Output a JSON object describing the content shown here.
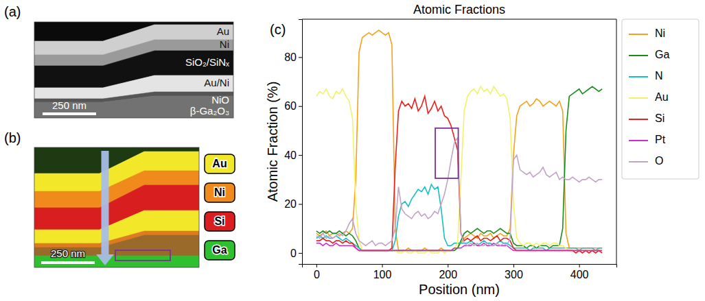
{
  "chart_data": {
    "type": "line",
    "title": "Atomic Fractions",
    "x_label": "Position (nm)",
    "y_label": "Atomic Fraction (%)",
    "xlim": [
      -21.8,
      456.8
    ],
    "ylim": [
      -4.5,
      95.5
    ],
    "xticks": [
      0,
      100,
      200,
      300,
      400
    ],
    "yticks": [
      0,
      20,
      40,
      60,
      80
    ],
    "grid": false,
    "legend": "right",
    "marker": "none",
    "line_style": "solid",
    "highlight": {
      "x": [
        181,
        216
      ],
      "y": [
        30.5,
        51
      ]
    },
    "x": [
      0,
      5,
      10,
      15,
      20,
      25,
      30,
      35,
      40,
      45,
      50,
      55,
      60,
      65,
      70,
      75,
      80,
      85,
      90,
      95,
      100,
      105,
      110,
      115,
      120,
      125,
      130,
      135,
      140,
      145,
      150,
      155,
      160,
      165,
      170,
      175,
      180,
      185,
      190,
      195,
      200,
      205,
      210,
      215,
      220,
      225,
      230,
      235,
      240,
      245,
      250,
      255,
      260,
      265,
      270,
      275,
      280,
      285,
      290,
      295,
      300,
      305,
      310,
      315,
      320,
      325,
      330,
      335,
      340,
      345,
      350,
      355,
      360,
      365,
      370,
      375,
      380,
      385,
      390,
      395,
      400,
      405,
      410,
      415,
      420,
      425,
      430,
      435
    ],
    "series": [
      {
        "name": "Ni",
        "color": "#f5a21b",
        "values": [
          8,
          7,
          8,
          9,
          7,
          8,
          8,
          7,
          8,
          9,
          8,
          10,
          30,
          82,
          88,
          89,
          90,
          89,
          90,
          91,
          90,
          89,
          90,
          85,
          10,
          1,
          1,
          1,
          2,
          1,
          1,
          1,
          1,
          2,
          1,
          1,
          1,
          1,
          2,
          1,
          1,
          1,
          2,
          2,
          4,
          6,
          7,
          8,
          7,
          6,
          8,
          7,
          7,
          8,
          6,
          7,
          8,
          7,
          7,
          10,
          40,
          56,
          60,
          61,
          62,
          60,
          61,
          63,
          62,
          60,
          61,
          62,
          61,
          60,
          62,
          58,
          8,
          2,
          2,
          2,
          2,
          2,
          2,
          2,
          2,
          2,
          2,
          2
        ]
      },
      {
        "name": "Ga",
        "color": "#1a8c1a",
        "values": [
          9,
          8,
          9,
          8,
          9,
          8,
          8,
          9,
          8,
          7,
          8,
          7,
          5,
          2,
          1,
          1,
          1,
          1,
          1,
          1,
          1,
          1,
          1,
          1,
          1,
          1,
          1,
          1,
          1,
          1,
          1,
          1,
          1,
          1,
          1,
          1,
          1,
          1,
          1,
          1,
          1,
          1,
          1,
          2,
          5,
          8,
          9,
          8,
          9,
          10,
          9,
          8,
          9,
          9,
          8,
          9,
          10,
          9,
          8,
          8,
          4,
          3,
          3,
          3,
          2,
          3,
          3,
          2,
          3,
          3,
          3,
          2,
          3,
          3,
          3,
          10,
          50,
          64,
          65,
          66,
          67,
          65,
          66,
          67,
          68,
          67,
          66,
          67
        ]
      },
      {
        "name": "N",
        "color": "#17bfc4",
        "values": [
          6,
          7,
          6,
          7,
          6,
          6,
          7,
          6,
          5,
          6,
          5,
          4,
          3,
          2,
          1,
          1,
          1,
          1,
          1,
          1,
          1,
          1,
          1,
          1,
          5,
          15,
          20,
          21,
          19,
          22,
          24,
          26,
          25,
          27,
          24,
          28,
          26,
          27,
          18,
          6,
          3,
          3,
          4,
          4,
          4,
          4,
          4,
          5,
          4,
          3,
          4,
          5,
          4,
          4,
          3,
          4,
          5,
          4,
          4,
          3,
          2,
          2,
          2,
          2,
          2,
          1,
          2,
          2,
          2,
          2,
          1,
          2,
          2,
          2,
          2,
          2,
          2,
          2,
          2,
          2,
          1,
          2,
          2,
          2,
          2,
          1,
          2,
          2
        ]
      },
      {
        "name": "Au",
        "color": "#f2f26a",
        "values": [
          64,
          66,
          65,
          67,
          64,
          63,
          66,
          65,
          67,
          64,
          62,
          55,
          20,
          5,
          1,
          1,
          1,
          1,
          1,
          1,
          1,
          1,
          1,
          1,
          1,
          0,
          0,
          1,
          0,
          0,
          1,
          0,
          0,
          0,
          1,
          0,
          0,
          0,
          1,
          0,
          1,
          1,
          2,
          4,
          30,
          58,
          64,
          66,
          67,
          65,
          68,
          66,
          67,
          65,
          68,
          66,
          64,
          65,
          63,
          55,
          20,
          6,
          4,
          3,
          4,
          4,
          3,
          4,
          3,
          4,
          4,
          3,
          4,
          4,
          3,
          3,
          2,
          1,
          1,
          1,
          1,
          1,
          1,
          1,
          1,
          1,
          1,
          1
        ]
      },
      {
        "name": "Si",
        "color": "#e8201e",
        "values": [
          5,
          5,
          6,
          5,
          5,
          4,
          5,
          5,
          4,
          5,
          4,
          4,
          2,
          1,
          1,
          1,
          1,
          1,
          1,
          1,
          1,
          1,
          1,
          2,
          35,
          58,
          62,
          60,
          61,
          59,
          63,
          58,
          60,
          64,
          57,
          59,
          62,
          58,
          60,
          56,
          55,
          52,
          47,
          42,
          8,
          5,
          6,
          5,
          6,
          7,
          5,
          6,
          6,
          5,
          6,
          7,
          5,
          6,
          6,
          5,
          2,
          1,
          1,
          1,
          1,
          1,
          1,
          1,
          1,
          1,
          1,
          1,
          1,
          1,
          1,
          1,
          1,
          1,
          1,
          0,
          1,
          0,
          1,
          0,
          1,
          0,
          1,
          0
        ]
      },
      {
        "name": "Pt",
        "color": "#d42ad4",
        "values": [
          4,
          4,
          3,
          4,
          3,
          3,
          4,
          3,
          3,
          3,
          3,
          3,
          2,
          1,
          1,
          1,
          1,
          1,
          1,
          1,
          1,
          1,
          1,
          1,
          1,
          1,
          1,
          1,
          1,
          1,
          1,
          1,
          1,
          1,
          1,
          1,
          1,
          1,
          1,
          1,
          1,
          1,
          2,
          2,
          2,
          3,
          3,
          3,
          4,
          3,
          3,
          4,
          3,
          3,
          4,
          3,
          3,
          3,
          3,
          2,
          1,
          1,
          1,
          1,
          1,
          1,
          1,
          1,
          1,
          1,
          1,
          1,
          1,
          1,
          1,
          1,
          1,
          1,
          1,
          1,
          1,
          1,
          1,
          1,
          1,
          1,
          1,
          1
        ]
      },
      {
        "name": "O",
        "color": "#c3a3c6",
        "values": [
          7,
          6,
          8,
          6,
          7,
          6,
          7,
          8,
          7,
          9,
          12,
          14,
          8,
          5,
          4,
          3,
          4,
          5,
          3,
          4,
          4,
          3,
          4,
          5,
          10,
          27,
          18,
          16,
          15,
          14,
          16,
          17,
          15,
          16,
          14,
          15,
          17,
          16,
          20,
          24,
          30,
          38,
          45,
          47,
          8,
          4,
          3,
          4,
          3,
          4,
          3,
          3,
          4,
          3,
          3,
          4,
          3,
          4,
          3,
          6,
          38,
          40,
          34,
          33,
          32,
          33,
          31,
          32,
          33,
          35,
          32,
          31,
          32,
          33,
          30,
          31,
          30,
          30,
          31,
          30,
          29,
          30,
          30,
          31,
          30,
          29,
          30,
          30
        ]
      }
    ]
  },
  "figure": {
    "panel_labels": [
      "(a)",
      "(b)",
      "(c)"
    ],
    "sem_image": {
      "layer_labels": [
        "Au",
        "Ni",
        "SiO₂/SiNₓ",
        "Au/Ni",
        "NiO",
        "β-Ga₂O₃"
      ],
      "scale_bar": "250 nm"
    },
    "eds_map": {
      "legend": [
        "Au",
        "Ni",
        "Si",
        "Ga"
      ],
      "legend_colors": [
        "#f2e829",
        "#f08a1c",
        "#d81e1e",
        "#2fc02f"
      ],
      "scale_bar": "250 nm"
    }
  }
}
